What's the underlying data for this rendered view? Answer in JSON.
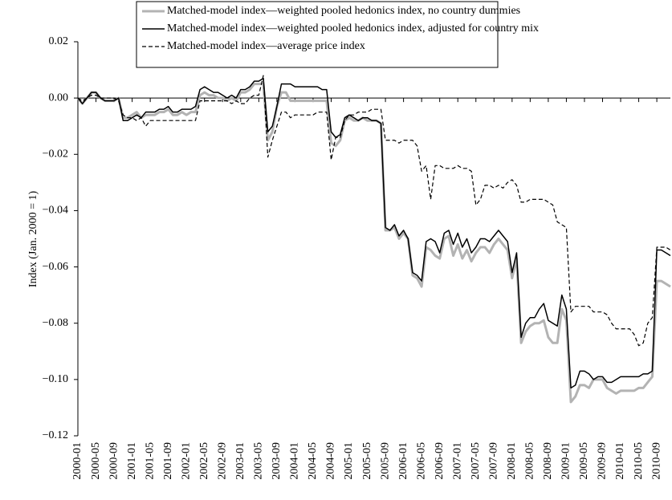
{
  "chart_data": {
    "type": "line",
    "y_label": "Index (Jan. 2000 = 1)",
    "ylim": [
      -0.12,
      0.02
    ],
    "yticks": [
      {
        "value": 0.02,
        "label": "0.02"
      },
      {
        "value": 0,
        "label": "0.00"
      },
      {
        "value": -0.02,
        "label": "−0.02"
      },
      {
        "value": -0.04,
        "label": "−0.04"
      },
      {
        "value": -0.06,
        "label": "−0.06"
      },
      {
        "value": -0.08,
        "label": "−0.08"
      },
      {
        "value": -0.1,
        "label": "−0.10"
      },
      {
        "value": -0.12,
        "label": "−0.12"
      }
    ],
    "grid": false,
    "legend": "top",
    "categories": [
      "2000-01",
      null,
      null,
      null,
      "2000-05",
      null,
      null,
      null,
      "2000-09",
      null,
      null,
      null,
      "2001-01",
      null,
      null,
      null,
      "2001-05",
      null,
      null,
      null,
      "2001-09",
      null,
      null,
      null,
      "2002-01",
      null,
      null,
      null,
      "2002-05",
      null,
      null,
      null,
      "2002-09",
      null,
      null,
      null,
      "2003-01",
      null,
      null,
      null,
      "2003-05",
      null,
      null,
      null,
      "2003-09",
      null,
      null,
      null,
      "2004-01",
      null,
      null,
      null,
      "2004-05",
      null,
      null,
      null,
      "2004-09",
      null,
      null,
      null,
      "2005-01",
      null,
      null,
      null,
      "2005-05",
      null,
      null,
      null,
      "2005-09",
      null,
      null,
      null,
      "2006-01",
      null,
      null,
      null,
      "2006-05",
      null,
      null,
      null,
      "2006-09",
      null,
      null,
      null,
      "2007-01",
      null,
      null,
      null,
      "2007-05",
      null,
      null,
      null,
      "2007-09",
      null,
      null,
      null,
      "2008-01",
      null,
      null,
      null,
      "2008-05",
      null,
      null,
      null,
      "2008-09",
      null,
      null,
      null,
      "2009-01",
      null,
      null,
      null,
      "2009-05",
      null,
      null,
      null,
      "2009-09",
      null,
      null,
      null,
      "2010-01",
      null,
      null,
      null,
      "2010-05",
      null,
      null,
      null,
      "2010-09",
      null,
      null,
      null
    ],
    "series": [
      {
        "name": "Matched-model index—weighted pooled hedonics index, no country dummies",
        "color": "#b3b3b3",
        "width": 3,
        "dash": "none",
        "values": [
          0,
          -0.002,
          0,
          0.002,
          0.002,
          0,
          -0.001,
          -0.001,
          -0.001,
          0,
          -0.007,
          -0.007,
          -0.006,
          -0.005,
          -0.007,
          -0.006,
          -0.006,
          -0.006,
          -0.005,
          -0.005,
          -0.004,
          -0.006,
          -0.006,
          -0.005,
          -0.006,
          -0.005,
          -0.005,
          0.001,
          0.002,
          0.001,
          0.001,
          0,
          0,
          -0.001,
          0,
          -0.001,
          0.002,
          0.002,
          0.003,
          0.005,
          0.005,
          0.005,
          -0.015,
          -0.012,
          -0.003,
          0.002,
          0.002,
          -0.001,
          -0.001,
          -0.001,
          -0.001,
          -0.001,
          -0.001,
          -0.001,
          -0.001,
          -0.001,
          -0.016,
          -0.017,
          -0.015,
          -0.008,
          -0.007,
          -0.008,
          -0.008,
          -0.007,
          -0.008,
          -0.008,
          -0.008,
          -0.009,
          -0.047,
          -0.047,
          -0.046,
          -0.05,
          -0.048,
          -0.05,
          -0.063,
          -0.064,
          -0.067,
          -0.053,
          -0.054,
          -0.056,
          -0.057,
          -0.05,
          -0.049,
          -0.056,
          -0.052,
          -0.057,
          -0.054,
          -0.058,
          -0.055,
          -0.053,
          -0.053,
          -0.055,
          -0.052,
          -0.05,
          -0.052,
          -0.054,
          -0.064,
          -0.057,
          -0.087,
          -0.083,
          -0.081,
          -0.08,
          -0.08,
          -0.079,
          -0.085,
          -0.087,
          -0.087,
          -0.075,
          -0.079,
          -0.108,
          -0.106,
          -0.102,
          -0.102,
          -0.103,
          -0.1,
          -0.1,
          -0.1,
          -0.103,
          -0.104,
          -0.105,
          -0.104,
          -0.104,
          -0.104,
          -0.104,
          -0.103,
          -0.103,
          -0.101,
          -0.099,
          -0.065,
          -0.065,
          -0.066,
          -0.067
        ]
      },
      {
        "name": "Matched-model index—weighted pooled hedonics index, adjusted for country mix",
        "color": "#000000",
        "width": 1.5,
        "dash": "none",
        "values": [
          0,
          -0.002,
          0,
          0.002,
          0.002,
          0,
          -0.001,
          -0.001,
          -0.001,
          0,
          -0.008,
          -0.008,
          -0.007,
          -0.006,
          -0.007,
          -0.005,
          -0.005,
          -0.005,
          -0.004,
          -0.004,
          -0.003,
          -0.005,
          -0.005,
          -0.004,
          -0.004,
          -0.004,
          -0.003,
          0.003,
          0.004,
          0.003,
          0.002,
          0.002,
          0.001,
          0,
          0.001,
          0,
          0.003,
          0.003,
          0.004,
          0.006,
          0.006,
          0.007,
          -0.012,
          -0.01,
          -0.003,
          0.005,
          0.005,
          0.005,
          0.004,
          0.004,
          0.004,
          0.004,
          0.004,
          0.004,
          0.003,
          0.003,
          -0.012,
          -0.014,
          -0.013,
          -0.007,
          -0.006,
          -0.007,
          -0.008,
          -0.007,
          -0.007,
          -0.008,
          -0.008,
          -0.009,
          -0.046,
          -0.047,
          -0.045,
          -0.049,
          -0.047,
          -0.05,
          -0.062,
          -0.063,
          -0.065,
          -0.051,
          -0.05,
          -0.051,
          -0.055,
          -0.048,
          -0.047,
          -0.052,
          -0.048,
          -0.053,
          -0.05,
          -0.055,
          -0.053,
          -0.05,
          -0.05,
          -0.051,
          -0.049,
          -0.047,
          -0.049,
          -0.051,
          -0.062,
          -0.055,
          -0.085,
          -0.08,
          -0.078,
          -0.078,
          -0.075,
          -0.073,
          -0.079,
          -0.08,
          -0.081,
          -0.07,
          -0.075,
          -0.103,
          -0.102,
          -0.097,
          -0.097,
          -0.098,
          -0.1,
          -0.099,
          -0.099,
          -0.101,
          -0.101,
          -0.1,
          -0.099,
          -0.099,
          -0.099,
          -0.099,
          -0.099,
          -0.098,
          -0.098,
          -0.097,
          -0.054,
          -0.054,
          -0.055,
          -0.056
        ]
      },
      {
        "name": "Matched-model index—average price index",
        "color": "#000000",
        "width": 1.2,
        "dash": "5,3",
        "values": [
          0,
          -0.001,
          0,
          0.001,
          0.001,
          0,
          0,
          0,
          0,
          -0.001,
          -0.006,
          -0.007,
          -0.007,
          -0.008,
          -0.007,
          -0.01,
          -0.008,
          -0.008,
          -0.008,
          -0.008,
          -0.008,
          -0.008,
          -0.008,
          -0.008,
          -0.008,
          -0.008,
          -0.008,
          -0.001,
          -0.001,
          -0.001,
          -0.001,
          -0.001,
          -0.001,
          -0.001,
          -0.002,
          -0.001,
          -0.002,
          -0.002,
          0,
          0.001,
          0.001,
          0.008,
          -0.021,
          -0.015,
          -0.01,
          -0.005,
          -0.005,
          -0.007,
          -0.006,
          -0.006,
          -0.006,
          -0.006,
          -0.006,
          -0.005,
          -0.005,
          -0.005,
          -0.022,
          -0.014,
          -0.014,
          -0.008,
          -0.006,
          -0.006,
          -0.005,
          -0.005,
          -0.005,
          -0.004,
          -0.004,
          -0.004,
          -0.015,
          -0.015,
          -0.015,
          -0.016,
          -0.015,
          -0.015,
          -0.015,
          -0.017,
          -0.026,
          -0.024,
          -0.036,
          -0.024,
          -0.024,
          -0.025,
          -0.025,
          -0.025,
          -0.024,
          -0.025,
          -0.025,
          -0.026,
          -0.038,
          -0.036,
          -0.031,
          -0.031,
          -0.032,
          -0.031,
          -0.032,
          -0.03,
          -0.029,
          -0.031,
          -0.037,
          -0.037,
          -0.036,
          -0.036,
          -0.036,
          -0.036,
          -0.037,
          -0.038,
          -0.044,
          -0.045,
          -0.046,
          -0.076,
          -0.074,
          -0.074,
          -0.074,
          -0.074,
          -0.076,
          -0.076,
          -0.076,
          -0.077,
          -0.08,
          -0.082,
          -0.082,
          -0.082,
          -0.082,
          -0.084,
          -0.088,
          -0.087,
          -0.08,
          -0.078,
          -0.053,
          -0.053,
          -0.053,
          -0.054
        ]
      }
    ]
  }
}
